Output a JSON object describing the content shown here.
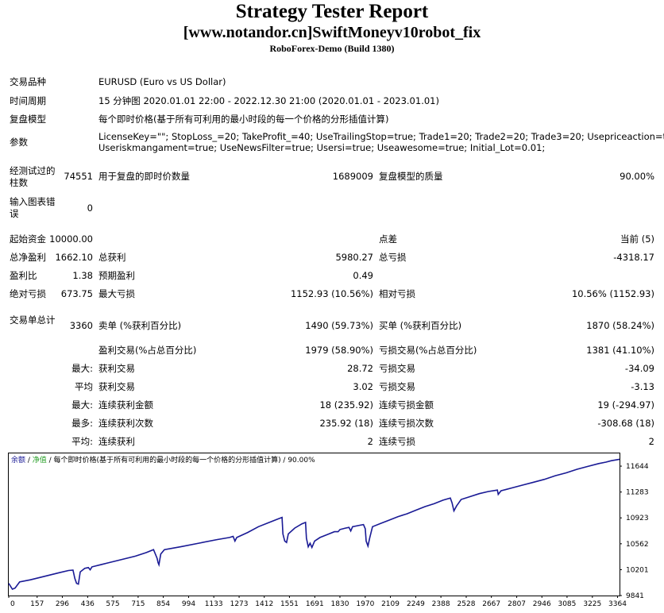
{
  "header": {
    "title": "Strategy Tester Report",
    "subtitle": "[www.notandor.cn]SwiftMoneyv10robot_fix",
    "build": "RoboForex-Demo (Build 1380)"
  },
  "info": {
    "symbol_label": "交易品种",
    "symbol_value": "EURUSD (Euro vs US Dollar)",
    "period_label": "时间周期",
    "period_value": "15 分钟图 2020.01.01 22:00 - 2022.12.30 21:00 (2020.01.01 - 2023.01.01)",
    "model_label": "复盘模型",
    "model_value": "每个即时价格(基于所有可利用的最小时段的每一个价格的分形插值计算)",
    "params_label": "参数",
    "params_line1": "LicenseKey=\"\"; StopLoss_=20; TakeProfit_=40; UseTrailingStop=true; Trade1=20; Trade2=20; Trade3=20; Usepriceaction=true;",
    "params_line2": "Useriskmangament=true; UseNewsFilter=true; Usersi=true; Useawesome=true; Initial_Lot=0.01;"
  },
  "stats": {
    "bars_label": "经测试过的柱数",
    "bars_value": "74551",
    "ticks_label": "用于复盘的即时价数量",
    "ticks_value": "1689009",
    "quality_label": "复盘模型的质量",
    "quality_value": "90.00%",
    "errors_label": "输入图表错误",
    "errors_value": "0",
    "deposit_label": "起始资金",
    "deposit_value": "10000.00",
    "spread_label": "点差",
    "spread_value": "当前 (5)",
    "net_label": "总净盈利",
    "net_value": "1662.10",
    "gross_profit_label": "总获利",
    "gross_profit_value": "5980.27",
    "gross_loss_label": "总亏损",
    "gross_loss_value": "-4318.17",
    "pf_label": "盈利比",
    "pf_value": "1.38",
    "payoff_label": "预期盈利",
    "payoff_value": "0.49",
    "abs_dd_label": "绝对亏损",
    "abs_dd_value": "673.75",
    "max_dd_label": "最大亏损",
    "max_dd_value": "1152.93 (10.56%)",
    "rel_dd_label": "相对亏损",
    "rel_dd_value": "10.56% (1152.93)",
    "trades_label": "交易单总计",
    "trades_value": "3360",
    "short_label": "卖单 (%获利百分比)",
    "short_value": "1490 (59.73%)",
    "long_label": "买单 (%获利百分比)",
    "long_value": "1870 (58.24%)",
    "win_label": "盈利交易(%占总百分比)",
    "win_value": "1979 (58.90%)",
    "loss_label": "亏损交易(%占总百分比)",
    "loss_value": "1381 (41.10%)",
    "largest_label": "最大:",
    "largest_win_label": "获利交易",
    "largest_win_value": "28.72",
    "largest_loss_label": "亏损交易",
    "largest_loss_value": "-34.09",
    "avg_label": "平均",
    "avg_win_label": "获利交易",
    "avg_win_value": "3.02",
    "avg_loss_label": "亏损交易",
    "avg_loss_value": "-3.13",
    "maxc_label": "最大:",
    "maxc_win_label": "连续获利金额",
    "maxc_win_value": "18 (235.92)",
    "maxc_loss_label": "连续亏损金额",
    "maxc_loss_value": "19 (-294.97)",
    "most_label": "最多:",
    "most_win_label": "连续获利次数",
    "most_win_value": "235.92 (18)",
    "most_loss_label": "连续亏损次数",
    "most_loss_value": "-308.68 (18)",
    "avgc_label": "平均:",
    "avgc_win_label": "连续获利",
    "avgc_win_value": "2",
    "avgc_loss_label": "连续亏损",
    "avgc_loss_value": "2"
  },
  "chart_data": {
    "type": "line",
    "legend": {
      "balance": "余额",
      "sep1": " / ",
      "equity": "净值",
      "rest": " / 每个即时价格(基于所有可利用的最小时段的每一个价格的分形插值计算) / 90.00%"
    },
    "colors": {
      "balance": "#1a1a96",
      "equity": "#2aa02a",
      "legend_balance": "#1a1a96",
      "legend_equity": "#2aa02a",
      "axis": "#000000"
    },
    "x_ticks": [
      0,
      157,
      296,
      436,
      575,
      715,
      854,
      994,
      1133,
      1273,
      1412,
      1551,
      1691,
      1830,
      1970,
      2109,
      2249,
      2388,
      2528,
      2667,
      2807,
      2946,
      3085,
      3225,
      3364
    ],
    "y_ticks": [
      11644,
      11283,
      10923,
      10562,
      10201,
      9841
    ],
    "xlim": [
      0,
      3375
    ],
    "ylim": [
      9841,
      11744
    ],
    "series": [
      {
        "values": [
          [
            0,
            10010
          ],
          [
            20,
            9930
          ],
          [
            35,
            9945
          ],
          [
            60,
            10030
          ],
          [
            120,
            10060
          ],
          [
            200,
            10110
          ],
          [
            280,
            10160
          ],
          [
            330,
            10190
          ],
          [
            355,
            10195
          ],
          [
            365,
            10080
          ],
          [
            375,
            10010
          ],
          [
            385,
            10000
          ],
          [
            395,
            10170
          ],
          [
            420,
            10220
          ],
          [
            440,
            10230
          ],
          [
            450,
            10200
          ],
          [
            460,
            10240
          ],
          [
            540,
            10290
          ],
          [
            620,
            10340
          ],
          [
            700,
            10390
          ],
          [
            760,
            10440
          ],
          [
            800,
            10480
          ],
          [
            820,
            10360
          ],
          [
            825,
            10300
          ],
          [
            830,
            10270
          ],
          [
            840,
            10420
          ],
          [
            860,
            10480
          ],
          [
            950,
            10520
          ],
          [
            1050,
            10570
          ],
          [
            1150,
            10620
          ],
          [
            1220,
            10650
          ],
          [
            1240,
            10665
          ],
          [
            1250,
            10600
          ],
          [
            1260,
            10650
          ],
          [
            1320,
            10720
          ],
          [
            1380,
            10800
          ],
          [
            1440,
            10860
          ],
          [
            1490,
            10910
          ],
          [
            1510,
            10930
          ],
          [
            1515,
            10700
          ],
          [
            1525,
            10600
          ],
          [
            1535,
            10580
          ],
          [
            1545,
            10700
          ],
          [
            1580,
            10780
          ],
          [
            1620,
            10840
          ],
          [
            1640,
            10860
          ],
          [
            1645,
            10640
          ],
          [
            1655,
            10520
          ],
          [
            1665,
            10570
          ],
          [
            1675,
            10510
          ],
          [
            1690,
            10600
          ],
          [
            1720,
            10650
          ],
          [
            1760,
            10690
          ],
          [
            1800,
            10730
          ],
          [
            1820,
            10730
          ],
          [
            1830,
            10760
          ],
          [
            1860,
            10780
          ],
          [
            1880,
            10790
          ],
          [
            1890,
            10740
          ],
          [
            1900,
            10800
          ],
          [
            1940,
            10820
          ],
          [
            1960,
            10830
          ],
          [
            1970,
            10770
          ],
          [
            1975,
            10600
          ],
          [
            1985,
            10530
          ],
          [
            1995,
            10650
          ],
          [
            2010,
            10800
          ],
          [
            2060,
            10850
          ],
          [
            2100,
            10890
          ],
          [
            2150,
            10940
          ],
          [
            2200,
            10980
          ],
          [
            2250,
            11030
          ],
          [
            2300,
            11080
          ],
          [
            2350,
            11120
          ],
          [
            2400,
            11170
          ],
          [
            2440,
            11200
          ],
          [
            2450,
            11130
          ],
          [
            2460,
            11020
          ],
          [
            2475,
            11090
          ],
          [
            2500,
            11180
          ],
          [
            2550,
            11220
          ],
          [
            2600,
            11260
          ],
          [
            2650,
            11290
          ],
          [
            2700,
            11310
          ],
          [
            2705,
            11250
          ],
          [
            2720,
            11300
          ],
          [
            2780,
            11340
          ],
          [
            2840,
            11380
          ],
          [
            2900,
            11420
          ],
          [
            2960,
            11460
          ],
          [
            3020,
            11510
          ],
          [
            3080,
            11550
          ],
          [
            3140,
            11600
          ],
          [
            3200,
            11640
          ],
          [
            3260,
            11680
          ],
          [
            3300,
            11700
          ],
          [
            3330,
            11720
          ],
          [
            3375,
            11740
          ]
        ]
      },
      {
        "values": [
          [
            0,
            10010
          ],
          [
            20,
            9930
          ],
          [
            35,
            9945
          ],
          [
            60,
            10030
          ],
          [
            120,
            10060
          ],
          [
            200,
            10110
          ],
          [
            280,
            10160
          ],
          [
            330,
            10190
          ],
          [
            355,
            10195
          ],
          [
            365,
            10080
          ],
          [
            375,
            10010
          ],
          [
            385,
            10000
          ],
          [
            395,
            10170
          ],
          [
            420,
            10220
          ],
          [
            440,
            10230
          ],
          [
            450,
            10200
          ],
          [
            460,
            10240
          ],
          [
            540,
            10290
          ],
          [
            620,
            10340
          ],
          [
            700,
            10390
          ],
          [
            760,
            10440
          ],
          [
            800,
            10480
          ],
          [
            820,
            10360
          ],
          [
            825,
            10300
          ],
          [
            830,
            10270
          ],
          [
            840,
            10420
          ],
          [
            860,
            10480
          ],
          [
            950,
            10520
          ],
          [
            1050,
            10570
          ],
          [
            1150,
            10620
          ],
          [
            1220,
            10650
          ],
          [
            1240,
            10665
          ],
          [
            1250,
            10600
          ],
          [
            1260,
            10650
          ],
          [
            1320,
            10720
          ],
          [
            1380,
            10800
          ],
          [
            1440,
            10860
          ],
          [
            1490,
            10910
          ],
          [
            1510,
            10930
          ],
          [
            1515,
            10700
          ],
          [
            1525,
            10600
          ],
          [
            1535,
            10580
          ],
          [
            1545,
            10700
          ],
          [
            1580,
            10780
          ],
          [
            1620,
            10840
          ],
          [
            1640,
            10860
          ],
          [
            1645,
            10640
          ],
          [
            1655,
            10520
          ],
          [
            1665,
            10570
          ],
          [
            1675,
            10510
          ],
          [
            1690,
            10600
          ],
          [
            1720,
            10650
          ],
          [
            1760,
            10690
          ],
          [
            1800,
            10730
          ],
          [
            1820,
            10730
          ],
          [
            1830,
            10760
          ],
          [
            1860,
            10780
          ],
          [
            1880,
            10790
          ],
          [
            1890,
            10740
          ],
          [
            1900,
            10800
          ],
          [
            1940,
            10820
          ],
          [
            1960,
            10830
          ],
          [
            1970,
            10770
          ],
          [
            1975,
            10600
          ],
          [
            1985,
            10530
          ],
          [
            1995,
            10650
          ],
          [
            2010,
            10800
          ],
          [
            2060,
            10850
          ],
          [
            2100,
            10890
          ],
          [
            2150,
            10940
          ],
          [
            2200,
            10980
          ],
          [
            2250,
            11030
          ],
          [
            2300,
            11080
          ],
          [
            2350,
            11120
          ],
          [
            2400,
            11170
          ],
          [
            2440,
            11200
          ],
          [
            2450,
            11130
          ],
          [
            2460,
            11020
          ],
          [
            2475,
            11090
          ],
          [
            2500,
            11180
          ],
          [
            2550,
            11220
          ],
          [
            2600,
            11260
          ],
          [
            2650,
            11290
          ],
          [
            2700,
            11310
          ],
          [
            2705,
            11250
          ],
          [
            2720,
            11300
          ],
          [
            2780,
            11340
          ],
          [
            2840,
            11380
          ],
          [
            2900,
            11420
          ],
          [
            2960,
            11460
          ],
          [
            3020,
            11510
          ],
          [
            3080,
            11550
          ],
          [
            3140,
            11600
          ],
          [
            3200,
            11640
          ],
          [
            3260,
            11680
          ],
          [
            3300,
            11700
          ],
          [
            3330,
            11720
          ],
          [
            3375,
            11740
          ]
        ]
      }
    ]
  }
}
